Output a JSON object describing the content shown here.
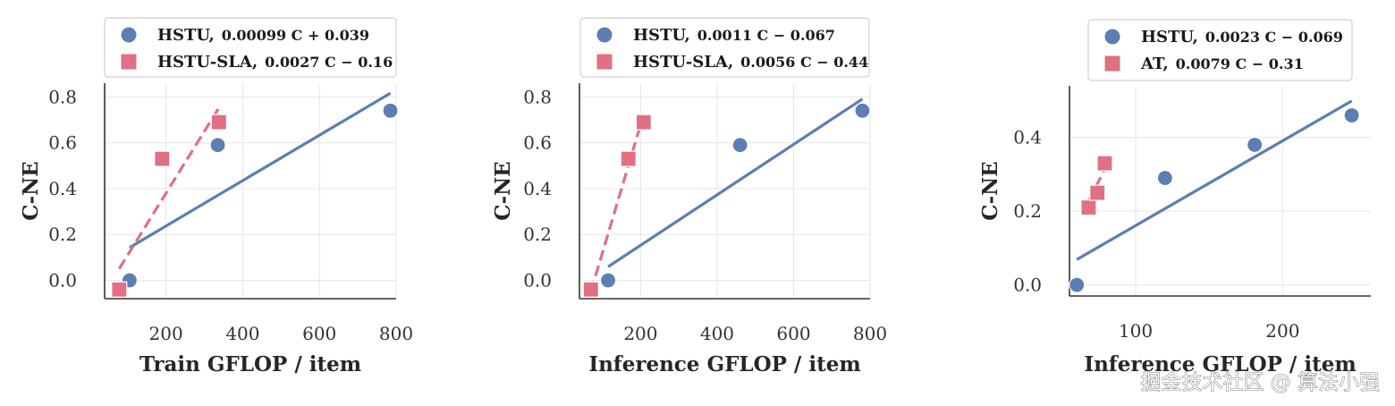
{
  "colors": {
    "blue": "#5b7fb3",
    "red": "#e07082",
    "grid": "#e6e6e6",
    "axis": "#333333"
  },
  "watermark": "掘金技术社区 @ 算法小强",
  "chart_data": [
    {
      "type": "scatter",
      "xlabel": "Train GFLOP / item",
      "ylabel": "C-NE",
      "xlim": [
        40,
        800
      ],
      "ylim": [
        -0.08,
        0.86
      ],
      "xticks": [
        200,
        400,
        600,
        800
      ],
      "yticks": [
        0.0,
        0.2,
        0.4,
        0.6,
        0.8
      ],
      "xtick_labels": [
        "200",
        "400",
        "600",
        "800"
      ],
      "ytick_labels": [
        "0.0",
        "0.2",
        "0.4",
        "0.6",
        "0.8"
      ],
      "grid": true,
      "legend_position": "top",
      "series": [
        {
          "name": "HSTU,",
          "equation": "0.00099 C + 0.039",
          "color": "blue",
          "marker": "circle",
          "line_style": "solid",
          "points": [
            [
              105,
              0.0
            ],
            [
              335,
              0.59
            ],
            [
              785,
              0.74
            ]
          ],
          "fit_x": [
            105,
            785
          ]
        },
        {
          "name": "HSTU-SLA,",
          "equation": "0.0027 C − 0.16",
          "color": "red",
          "marker": "square",
          "line_style": "dashed",
          "points": [
            [
              78,
              -0.04
            ],
            [
              190,
              0.53
            ],
            [
              338,
              0.69
            ]
          ],
          "fit_x": [
            78,
            338
          ]
        }
      ]
    },
    {
      "type": "scatter",
      "xlabel": "Inference GFLOP / item",
      "ylabel": "C-NE",
      "xlim": [
        40,
        800
      ],
      "ylim": [
        -0.08,
        0.86
      ],
      "xticks": [
        200,
        400,
        600,
        800
      ],
      "yticks": [
        0.0,
        0.2,
        0.4,
        0.6,
        0.8
      ],
      "xtick_labels": [
        "200",
        "400",
        "600",
        "800"
      ],
      "ytick_labels": [
        "0.0",
        "0.2",
        "0.4",
        "0.6",
        "0.8"
      ],
      "grid": true,
      "legend_position": "top",
      "series": [
        {
          "name": "HSTU,",
          "equation": "0.0011 C − 0.067",
          "color": "blue",
          "marker": "circle",
          "line_style": "solid",
          "points": [
            [
              115,
              0.0
            ],
            [
              460,
              0.59
            ],
            [
              780,
              0.74
            ]
          ],
          "fit_x": [
            115,
            780
          ]
        },
        {
          "name": "HSTU-SLA,",
          "equation": "0.0056 C − 0.44",
          "color": "red",
          "marker": "square",
          "line_style": "dashed",
          "points": [
            [
              70,
              -0.04
            ],
            [
              168,
              0.53
            ],
            [
              208,
              0.69
            ]
          ],
          "fit_x": [
            70,
            208
          ]
        }
      ]
    },
    {
      "type": "scatter",
      "xlabel": "Inference GFLOP / item",
      "ylabel": "C-NE",
      "xlim": [
        55,
        260
      ],
      "ylim": [
        -0.03,
        0.54
      ],
      "xticks": [
        100,
        200
      ],
      "yticks": [
        0.0,
        0.2,
        0.4
      ],
      "xtick_labels": [
        "100",
        "200"
      ],
      "ytick_labels": [
        "0.0",
        "0.2",
        "0.4"
      ],
      "grid": true,
      "legend_position": "top",
      "series": [
        {
          "name": "HSTU,",
          "equation": "0.0023 C − 0.069",
          "color": "blue",
          "marker": "circle",
          "line_style": "solid",
          "points": [
            [
              60,
              0.0
            ],
            [
              120,
              0.29
            ],
            [
              181,
              0.38
            ],
            [
              247,
              0.46
            ]
          ],
          "fit_x": [
            60,
            247
          ]
        },
        {
          "name": "AT,",
          "equation": "0.0079 C − 0.31",
          "color": "red",
          "marker": "square",
          "line_style": "dashed",
          "points": [
            [
              68,
              0.21
            ],
            [
              74,
              0.25
            ],
            [
              79,
              0.33
            ]
          ],
          "fit_x": [
            68,
            79
          ]
        }
      ]
    }
  ]
}
